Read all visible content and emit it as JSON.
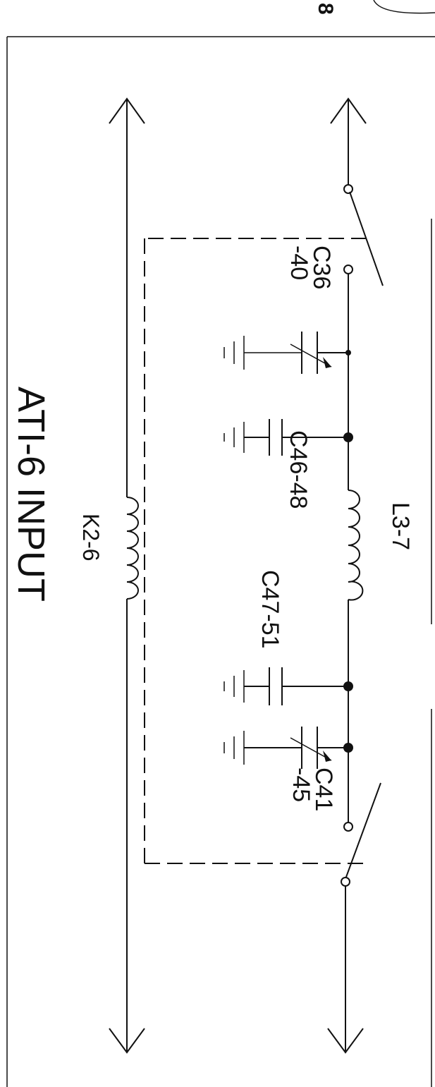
{
  "corner_label": "8",
  "title": "ATI-6 INPUT",
  "components": {
    "trimmer_cap_1": "C36\n-40",
    "cap_c46": "C46-48",
    "inductor_l3": "L3-7",
    "cap_c47": "C47-51",
    "trimmer_cap_2": "C41\n-45",
    "relay_coil": "K2-6"
  }
}
